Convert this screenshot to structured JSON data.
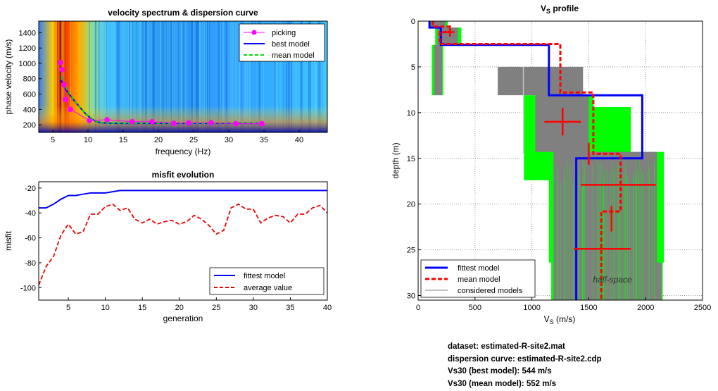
{
  "chart_data": [
    {
      "id": "spectrum",
      "type": "heatmap",
      "title": "velocity spectrum & dispersion curve",
      "xlabel": "frequency (Hz)",
      "ylabel": "phase velocity (m/s)",
      "xlim": [
        3,
        44
      ],
      "ylim": [
        100,
        1550
      ],
      "xticks": [
        5,
        10,
        15,
        20,
        25,
        30,
        35,
        40
      ],
      "yticks": [
        200,
        400,
        600,
        800,
        1000,
        1200,
        1400
      ],
      "grid": false,
      "legend": {
        "position": "top-right",
        "entries": [
          "picking",
          "best model",
          "mean model"
        ]
      },
      "picking": {
        "x": [
          6.1,
          6.3,
          6.6,
          6.8,
          7.5,
          10.2,
          12.7,
          16.3,
          19.1,
          22.2,
          24.3,
          27.5,
          31.0,
          34.7
        ],
        "y": [
          1010,
          920,
          720,
          530,
          400,
          255,
          265,
          240,
          240,
          220,
          225,
          225,
          215,
          215
        ]
      },
      "best_model": {
        "x": [
          6.2,
          6.6,
          7.0,
          7.5,
          8.0,
          8.5,
          9.0,
          9.5,
          10.0,
          10.5,
          11.0,
          11.5,
          12.0,
          13.0,
          15.0,
          20.0,
          25.0,
          30.0,
          35.0
        ],
        "y": [
          780,
          700,
          640,
          580,
          520,
          465,
          410,
          360,
          315,
          280,
          250,
          235,
          225,
          220,
          218,
          218,
          218,
          218,
          218
        ]
      },
      "mean_model": {
        "x": [
          6.2,
          6.6,
          7.0,
          7.5,
          8.0,
          8.5,
          9.0,
          9.5,
          10.0,
          10.5,
          11.0,
          11.5,
          12.0,
          13.0,
          15.0,
          20.0,
          25.0,
          30.0,
          35.0
        ],
        "y": [
          830,
          740,
          660,
          590,
          525,
          465,
          410,
          360,
          318,
          283,
          255,
          238,
          228,
          222,
          220,
          220,
          220,
          220,
          220
        ]
      }
    },
    {
      "id": "misfit",
      "type": "line",
      "title": "misfit evolution",
      "xlabel": "generation",
      "ylabel": "misfit",
      "xlim": [
        1,
        40
      ],
      "ylim": [
        -110,
        -15
      ],
      "xticks": [
        5,
        10,
        15,
        20,
        25,
        30,
        35,
        40
      ],
      "yticks": [
        -100,
        -80,
        -60,
        -40,
        -20
      ],
      "grid": false,
      "legend": {
        "position": "bottom-right",
        "entries": [
          "fittest model",
          "average value"
        ]
      },
      "x": [
        1,
        2,
        3,
        4,
        5,
        6,
        7,
        8,
        9,
        10,
        11,
        12,
        13,
        14,
        15,
        16,
        17,
        18,
        19,
        20,
        21,
        22,
        23,
        24,
        25,
        26,
        27,
        28,
        29,
        30,
        31,
        32,
        33,
        34,
        35,
        36,
        37,
        38,
        39,
        40
      ],
      "series": [
        {
          "name": "fittest model",
          "values": [
            -36,
            -36,
            -33,
            -29,
            -26,
            -26,
            -25,
            -24,
            -24,
            -24,
            -23,
            -22,
            -22,
            -22,
            -22,
            -22,
            -22,
            -22,
            -22,
            -22,
            -22,
            -22,
            -22,
            -22,
            -22,
            -22,
            -22,
            -22,
            -22,
            -22,
            -22,
            -22,
            -22,
            -22,
            -22,
            -22,
            -22,
            -22,
            -22,
            -22
          ]
        },
        {
          "name": "average value",
          "values": [
            -98,
            -83,
            -75,
            -58,
            -49,
            -57,
            -55,
            -41,
            -41,
            -35,
            -33,
            -38,
            -36,
            -45,
            -48,
            -45,
            -49,
            -47,
            -46,
            -49,
            -47,
            -42,
            -45,
            -50,
            -57,
            -54,
            -36,
            -33,
            -37,
            -37,
            -48,
            -44,
            -42,
            -43,
            -48,
            -41,
            -41,
            -36,
            -34,
            -40
          ]
        }
      ]
    },
    {
      "id": "vs-profile",
      "type": "line",
      "title": "V",
      "title_sub": "S",
      "title_rest": " profile",
      "xlabel": "V",
      "xlabel_sub": "S",
      "xlabel_rest": " (m/s)",
      "ylabel": "depth (m)",
      "xlim": [
        0,
        2500
      ],
      "ylim": [
        0,
        30.5
      ],
      "y_reversed": true,
      "xticks": [
        0,
        500,
        1000,
        1500,
        2000,
        2500
      ],
      "yticks": [
        0,
        5,
        10,
        15,
        20,
        25,
        30
      ],
      "grid": true,
      "legend": {
        "position": "bottom-left",
        "entries": [
          "fittest model",
          "mean model",
          "considered models"
        ]
      },
      "annotation": "half-space",
      "series": [
        {
          "name": "fittest model",
          "vs": [
            100,
            200,
            1150,
            1970,
            1390
          ],
          "layer_bottoms": [
            0.7,
            2.6,
            8.1,
            15.0,
            24.0
          ]
        },
        {
          "name": "mean model",
          "vs": [
            130,
            280,
            190,
            1250,
            1540,
            1780,
            1610
          ],
          "layer_bottoms": [
            0.6,
            1.2,
            2.5,
            7.8,
            14.5,
            20.8,
            30.5
          ]
        }
      ],
      "error_bars": [
        {
          "vs": 280,
          "depth": 1.2,
          "xerr": 40,
          "yerr": 0.5
        },
        {
          "vs": 240,
          "depth": 7.8,
          "xerr": 0,
          "yerr": 0
        },
        {
          "vs": 1270,
          "depth": 11.0,
          "xerr": 160,
          "yerr": 1.5
        },
        {
          "vs": 1500,
          "depth": 14.5,
          "xerr": 0,
          "yerr": 1.2
        },
        {
          "vs": 1760,
          "depth": 17.9,
          "xerr": 330,
          "yerr": 0
        },
        {
          "vs": 1700,
          "depth": 21.6,
          "xerr": 0,
          "yerr": 1.4
        },
        {
          "vs": 1620,
          "depth": 24.9,
          "xerr": 250,
          "yerr": 0
        }
      ]
    }
  ],
  "info": {
    "dataset": "dataset: estimated-R-site2.mat",
    "curve": "dispersion curve: estimated-R-site2.cdp",
    "vs30_best": "Vs30 (best model): 544 m/s",
    "vs30_mean": "Vs30 (mean model): 552 m/s"
  },
  "colors": {
    "picking": "#ff00ff",
    "best": "#0000ff",
    "mean_spec": "#00dd00",
    "avg": "#ee0000",
    "mean_vs": "#ff0000",
    "considered": "#808080",
    "envelope": "#00ff00"
  }
}
